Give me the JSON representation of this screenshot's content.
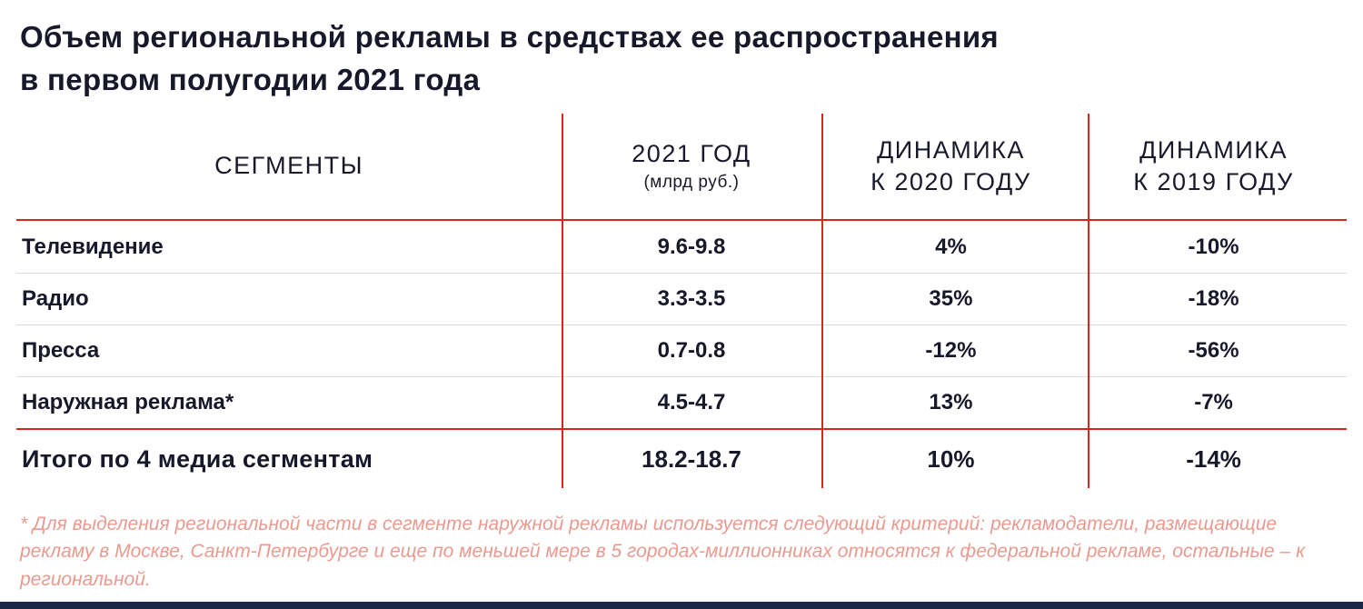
{
  "page": {
    "title_line1": "Объем региональной рекламы в средствах ее распространения",
    "title_line2": "в первом полугодии 2021 года",
    "footnote": "* Для выделения региональной части в сегменте наружной рекламы используется следующий критерий: рекламодатели, размещающие рекламу в Москве, Санкт-Петербурге и еще по меньшей мере в 5 городах-миллионниках относятся к федеральной рекламе, остальные – к региональной.",
    "colors": {
      "accent_red": "#d6281e",
      "dark_navy": "#18182b",
      "footnote_salmon": "#ea9a8f",
      "bottom_bar_navy": "#1c2747",
      "row_divider_gray": "#dcdcdc"
    }
  },
  "table": {
    "headers": [
      {
        "line1": "СЕГМЕНТЫ",
        "line2": ""
      },
      {
        "line1": "2021 ГОД",
        "line2": "(млрд руб.)"
      },
      {
        "line1": "ДИНАМИКА",
        "line2": "К 2020 ГОДУ"
      },
      {
        "line1": "ДИНАМИКА",
        "line2": "К 2019 ГОДУ"
      }
    ],
    "rows": [
      {
        "segment": "Телевидение",
        "value": "9.6-9.8",
        "d2020": "4%",
        "d2019": "-10%"
      },
      {
        "segment": "Радио",
        "value": "3.3-3.5",
        "d2020": "35%",
        "d2019": "-18%"
      },
      {
        "segment": "Пресса",
        "value": "0.7-0.8",
        "d2020": "-12%",
        "d2019": "-56%"
      },
      {
        "segment": "Наружная реклама*",
        "value": "4.5-4.7",
        "d2020": "13%",
        "d2019": "-7%"
      }
    ],
    "total": {
      "segment": "Итого по 4 медиа сегментам",
      "value": "18.2-18.7",
      "d2020": "10%",
      "d2019": "-14%"
    }
  },
  "chart_data": {
    "type": "table",
    "title": "Объем региональной рекламы в средствах ее распространения в первом полугодии 2021 года",
    "columns": [
      "СЕГМЕНТЫ",
      "2021 ГОД (млрд руб.)",
      "ДИНАМИКА К 2020 ГОДУ",
      "ДИНАМИКА К 2019 ГОДУ"
    ],
    "rows": [
      [
        "Телевидение",
        "9.6-9.8",
        "4%",
        "-10%"
      ],
      [
        "Радио",
        "3.3-3.5",
        "35%",
        "-18%"
      ],
      [
        "Пресса",
        "0.7-0.8",
        "-12%",
        "-56%"
      ],
      [
        "Наружная реклама*",
        "4.5-4.7",
        "13%",
        "-7%"
      ],
      [
        "Итого по 4 медиа сегментам",
        "18.2-18.7",
        "10%",
        "-14%"
      ]
    ],
    "footnote": "* Для выделения региональной части в сегменте наружной рекламы используется следующий критерий: рекламодатели, размещающие рекламу в Москве, Санкт-Петербурге и еще по меньшей мере в 5 городах-миллионниках относятся к федеральной рекламе, остальные – к региональной."
  }
}
